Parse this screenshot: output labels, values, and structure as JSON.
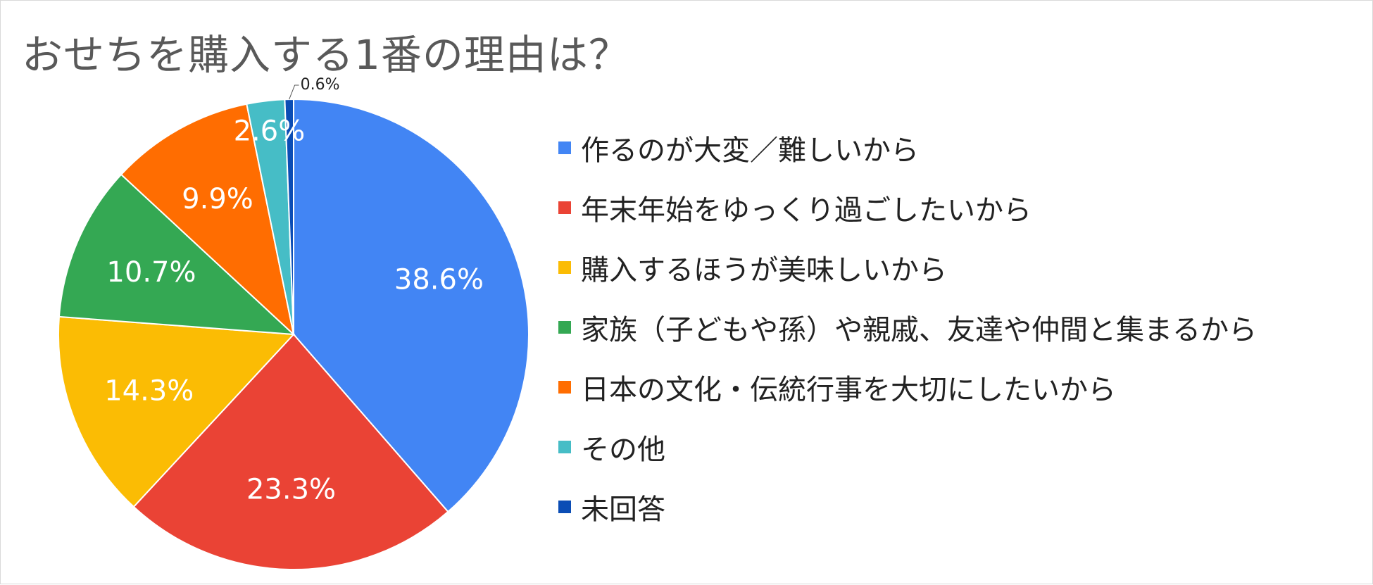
{
  "chart_data": {
    "type": "pie",
    "title": "おせちを購入する1番の理由は？",
    "slices": [
      {
        "label": "作るのが大変／難しいから",
        "value": 38.6,
        "display": "38.6%",
        "color": "#4285F4",
        "text_color": "#ffffff"
      },
      {
        "label": "年末年始をゆっくり過ごしたいから",
        "value": 23.3,
        "display": "23.3%",
        "color": "#EA4335",
        "text_color": "#ffffff"
      },
      {
        "label": "購入するほうが美味しいから",
        "value": 14.3,
        "display": "14.3%",
        "color": "#FBBC04",
        "text_color": "#ffffff"
      },
      {
        "label": "家族（子どもや孫）や親戚、友達や仲間と集まるから",
        "value": 10.7,
        "display": "10.7%",
        "color": "#34A853",
        "text_color": "#ffffff"
      },
      {
        "label": "日本の文化・伝統行事を大切にしたいから",
        "value": 9.9,
        "display": "9.9%",
        "color": "#FF6D01",
        "text_color": "#ffffff"
      },
      {
        "label": "その他",
        "value": 2.6,
        "display": "2.6%",
        "color": "#46BDC6",
        "text_color": "#ffffff"
      },
      {
        "label": "未回答",
        "value": 0.6,
        "display": "0.6%",
        "color": "#0B4DB5",
        "text_color": "#222222"
      }
    ],
    "legend_position": "right"
  }
}
